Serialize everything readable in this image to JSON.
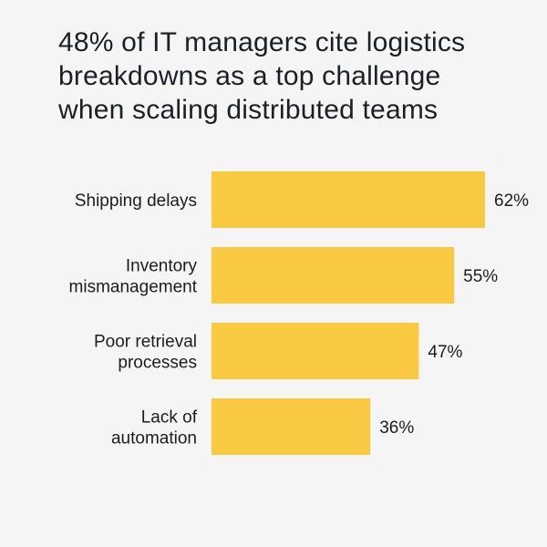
{
  "title_lines": [
    " 48% of IT managers cite logistics",
    "breakdowns as a top challenge",
    "when scaling distributed teams"
  ],
  "colors": {
    "background": "#f5f5f5",
    "bar": "#f9c941",
    "text": "#1c1c1c"
  },
  "chart_data": {
    "type": "bar",
    "orientation": "horizontal",
    "title": "48% of IT managers cite logistics breakdowns as a top challenge when scaling distributed teams",
    "categories": [
      [
        "Shipping delays"
      ],
      [
        "Inventory",
        "mismanagement"
      ],
      [
        "Poor retrieval",
        "processes"
      ],
      [
        "Lack of",
        "automation"
      ]
    ],
    "values": [
      62,
      55,
      47,
      36
    ],
    "value_labels": [
      "62%",
      "55%",
      "47%",
      "36%"
    ],
    "xlim": [
      0,
      62
    ],
    "grid": false,
    "legend": "none"
  }
}
